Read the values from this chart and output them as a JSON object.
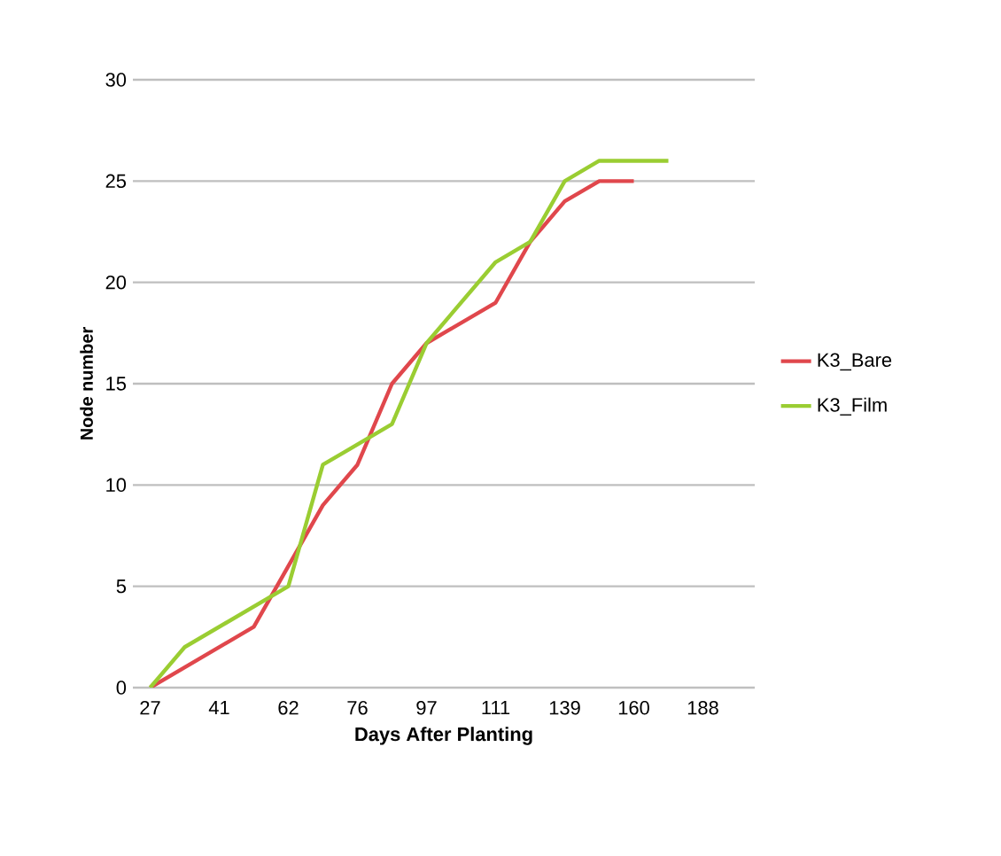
{
  "chart_data": {
    "type": "line",
    "xlabel": "Days After Planting",
    "ylabel": "Node number",
    "categories": [
      "27",
      null,
      "41",
      null,
      "62",
      null,
      "76",
      null,
      "97",
      null,
      "111",
      null,
      "139",
      null,
      "160",
      null,
      "188",
      null
    ],
    "series": [
      {
        "name": "K3_Bare",
        "color": "#e0474c",
        "values": [
          0,
          1,
          2,
          3,
          6,
          9,
          11,
          15,
          17,
          18,
          19,
          22,
          24,
          25,
          25,
          null,
          null,
          null
        ]
      },
      {
        "name": "K3_Film",
        "color": "#9acd32",
        "values": [
          0,
          2,
          3,
          4,
          5,
          11,
          12,
          13,
          17,
          19,
          21,
          22,
          25,
          26,
          26,
          26,
          null,
          null
        ]
      }
    ],
    "ylim": [
      0,
      30
    ],
    "yticks": [
      0,
      5,
      10,
      15,
      20,
      25,
      30
    ],
    "grid": "y",
    "legend": "right",
    "marker": "none",
    "line_style": "solid"
  }
}
